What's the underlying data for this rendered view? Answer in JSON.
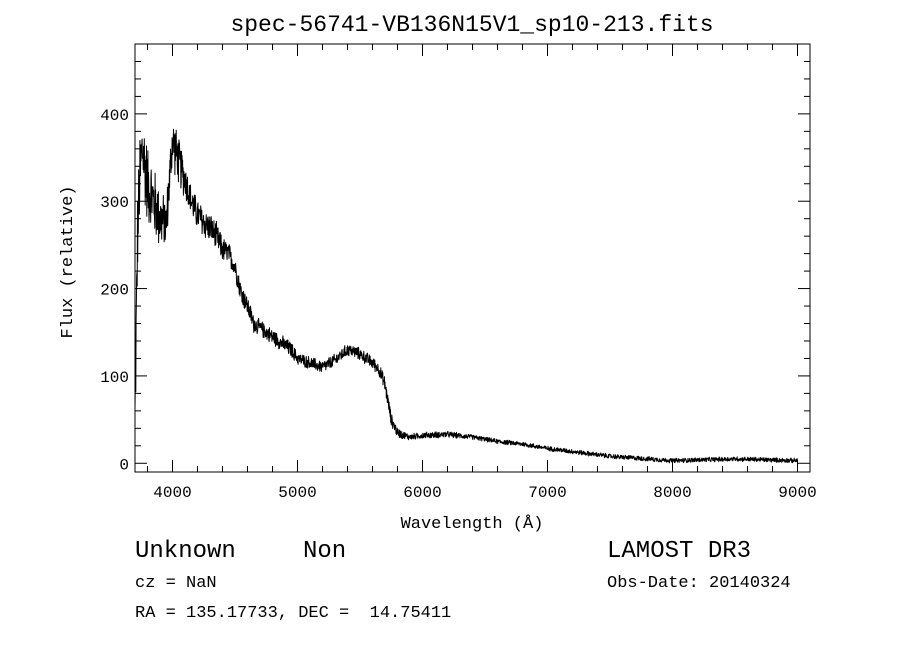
{
  "chart_data": {
    "type": "line",
    "title": "spec-56741-VB136N15V1_sp10-213.fits",
    "xlabel": "Wavelength (Å)",
    "ylabel": "Flux (relative)",
    "xlim": [
      3700,
      9100
    ],
    "ylim": [
      -10,
      480
    ],
    "xticks": [
      4000,
      5000,
      6000,
      7000,
      8000,
      9000
    ],
    "yticks": [
      0,
      100,
      200,
      300,
      400
    ],
    "x_tick_labels": [
      "4000",
      "5000",
      "6000",
      "7000",
      "8000",
      "9000"
    ],
    "y_tick_labels": [
      "0",
      "100",
      "200",
      "300",
      "400"
    ],
    "series": [
      {
        "name": "flux",
        "anchors_x": [
          3700,
          3720,
          3740,
          3760,
          3780,
          3800,
          3850,
          3900,
          3950,
          4000,
          4050,
          4100,
          4150,
          4200,
          4250,
          4300,
          4350,
          4400,
          4450,
          4500,
          4550,
          4600,
          4650,
          4700,
          4750,
          4800,
          4850,
          4900,
          4950,
          5000,
          5100,
          5200,
          5300,
          5400,
          5450,
          5500,
          5550,
          5600,
          5650,
          5700,
          5750,
          5800,
          5850,
          5900,
          6000,
          6200,
          6400,
          6600,
          6800,
          7000,
          7500,
          8000,
          8500,
          9000
        ],
        "anchors_y": [
          50,
          260,
          330,
          360,
          340,
          320,
          300,
          280,
          275,
          370,
          345,
          325,
          300,
          285,
          275,
          270,
          260,
          245,
          240,
          225,
          195,
          180,
          160,
          155,
          150,
          145,
          140,
          135,
          130,
          120,
          115,
          110,
          118,
          130,
          128,
          125,
          120,
          115,
          108,
          90,
          50,
          35,
          32,
          30,
          32,
          33,
          30,
          25,
          22,
          17,
          8,
          3,
          5,
          3
        ],
        "noise_amplitude": [
          60,
          60,
          55,
          55,
          55,
          50,
          45,
          40,
          30,
          35,
          30,
          25,
          20,
          20,
          20,
          18,
          18,
          16,
          14,
          14,
          14,
          12,
          12,
          10,
          10,
          10,
          10,
          10,
          10,
          8,
          8,
          8,
          8,
          8,
          8,
          8,
          8,
          8,
          8,
          10,
          8,
          6,
          5,
          4,
          4,
          4,
          3,
          3,
          3,
          3,
          3,
          3,
          3,
          3
        ]
      }
    ]
  },
  "footer": {
    "object_class": "Unknown",
    "subclass": "Non",
    "redshift": "cz = NaN",
    "coords": "RA = 135.17733, DEC =  14.75411",
    "survey": "LAMOST DR3",
    "obs_date": "Obs-Date: 20140324"
  }
}
